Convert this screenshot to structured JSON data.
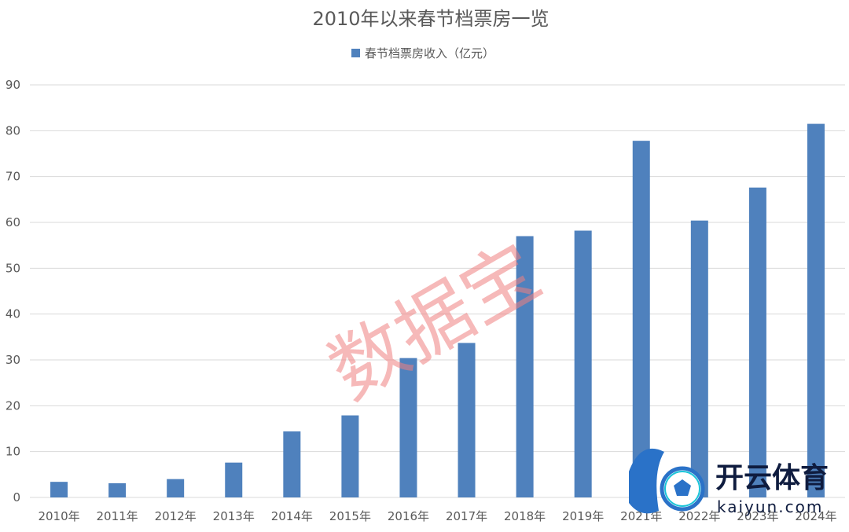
{
  "chart_data": {
    "type": "bar",
    "title": "2010年以来春节档票房一览",
    "categories": [
      "2010年",
      "2011年",
      "2012年",
      "2013年",
      "2014年",
      "2015年",
      "2016年",
      "2017年",
      "2018年",
      "2019年",
      "2021年",
      "2022年",
      "2023年",
      "2024年"
    ],
    "series": [
      {
        "name": "春节档票房收入（亿元）",
        "values": [
          3.4,
          3.1,
          4.0,
          7.6,
          14.4,
          17.9,
          30.4,
          33.7,
          57.0,
          58.2,
          77.8,
          60.4,
          67.6,
          81.5
        ]
      }
    ],
    "ylim": [
      0,
      90
    ],
    "yticks": [
      0,
      10,
      20,
      30,
      40,
      50,
      60,
      70,
      80,
      90
    ],
    "grid": true,
    "legend_position": "top",
    "color": "#4f81bd"
  },
  "watermark": {
    "text": "数据宝",
    "color": "#f08080"
  },
  "logo": {
    "name": "开云体育",
    "url": "kaiyun.com",
    "icon": "soccer-ball-icon"
  }
}
